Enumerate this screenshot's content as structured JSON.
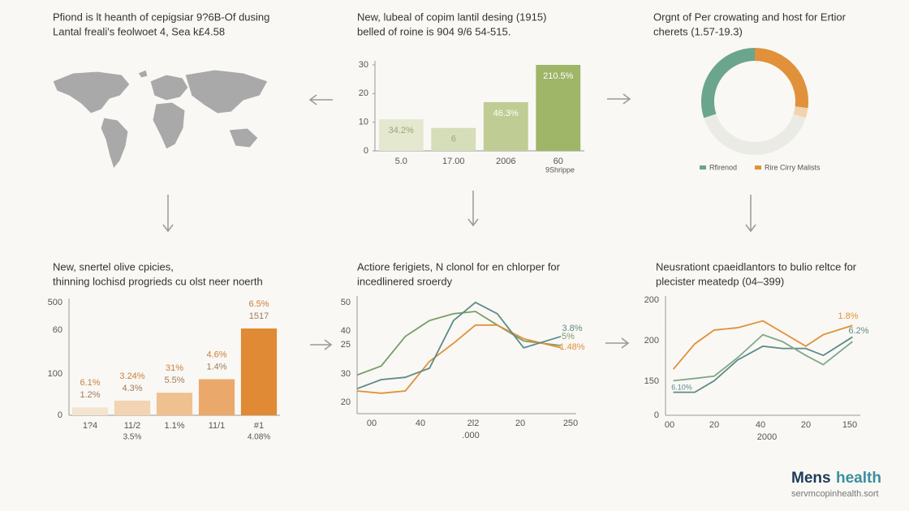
{
  "map": {
    "title": [
      "Pfiond is lt heanth of cepigsiar 9?6B-Of dusing",
      "Lantal freali's feolwoet 4, Sea k£4.58"
    ]
  },
  "chart_data": [
    {
      "type": "bar",
      "title": "New, lubeal of copim lantil desing (1915)",
      "subtitle": "belled of roine is 904 9/6 54-515.",
      "categories": [
        "5.0",
        "17.00",
        "2006",
        "60"
      ],
      "values": [
        11,
        8,
        17,
        30
      ],
      "bar_labels": [
        "34.2%",
        "6",
        "46.3%",
        "210.5%"
      ],
      "colors": [
        "#e3e8cf",
        "#d6ddb9",
        "#bfcc94",
        "#9fb568"
      ],
      "ylim": [
        0,
        30
      ],
      "yticks": [
        0,
        10,
        20,
        30
      ],
      "x_note": "9Shrippe"
    },
    {
      "type": "pie",
      "title": "Orgnt of Per crowating and host for Ertior",
      "subtitle": "cherets (1.57-19.3)",
      "values": [
        27,
        3,
        40,
        30
      ],
      "colors": [
        "#e0913a",
        "#f3d2ae",
        "#ebebe6",
        "#6ba58e"
      ],
      "legend": [
        {
          "name": "Rfirenod",
          "color": "#6ba58e"
        },
        {
          "name": "Rire Cirry Malists",
          "color": "#e0913a"
        }
      ]
    },
    {
      "type": "bar",
      "title": "New, snertel olive cpicies,",
      "subtitle": "thinning lochisd progrieds cu olst neer noerth",
      "categories": [
        "1?4",
        "11/2",
        "1.1%",
        "11/1",
        "#1"
      ],
      "x_sublabels": [
        null,
        "3.5%",
        null,
        null,
        "4.08%"
      ],
      "values": [
        7,
        13,
        20,
        32,
        77
      ],
      "bar_labels": [
        "6.1%",
        "3.24%",
        "31%",
        "4.6%",
        "6.5%"
      ],
      "bar_sublabels": [
        "1.2%",
        "4.3%",
        "5.5%",
        "1.4%",
        "1517"
      ],
      "colors": [
        "#f5e4d0",
        "#f2d4b2",
        "#efc190",
        "#eaa96b",
        "#e08a35"
      ],
      "ylim": [
        0,
        100
      ],
      "y_axis_labels": [
        "500",
        "60",
        "100",
        "0"
      ]
    },
    {
      "type": "line",
      "title": "Actiore ferigiets, N clonol for en chlorper for",
      "subtitle": "incedlinered sroerdy",
      "x": [
        0,
        11,
        22,
        33,
        44,
        54,
        64,
        76,
        93
      ],
      "xlim": [
        0,
        100
      ],
      "ylim": [
        0,
        50
      ],
      "x_axis_labels": [
        "00",
        "40",
        "2l2",
        "20",
        "250"
      ],
      "x_axis_title": ".000",
      "y_axis_labels": [
        "50",
        "40",
        "25",
        "30",
        "20"
      ],
      "series": [
        {
          "name": "5%",
          "color": "#7a9e6a",
          "values": [
            17,
            21,
            34,
            41,
            44,
            45,
            39,
            32,
            30
          ]
        },
        {
          "name": "1.48%",
          "color": "#e0913a",
          "values": [
            10,
            9,
            10,
            23,
            31,
            39,
            39,
            33,
            29
          ]
        },
        {
          "name": "3.8%",
          "color": "#5e8a8a",
          "values": [
            11,
            15,
            16,
            20,
            41,
            49,
            44,
            29,
            34
          ]
        }
      ]
    },
    {
      "type": "line",
      "title": "Neusrationt cpaeidlantors to bulio reltce for",
      "subtitle": "plecister meatedp (04–399)",
      "x": [
        4,
        15,
        25,
        37,
        50,
        60,
        72,
        81,
        96
      ],
      "xlim": [
        0,
        100
      ],
      "ylim": [
        0,
        50
      ],
      "x_axis_labels": [
        "00",
        "20",
        "40",
        "20",
        "150"
      ],
      "x_axis_title": "2000",
      "y_axis_labels": [
        "200",
        "200",
        "150",
        "0"
      ],
      "annotation": "6.10%",
      "series": [
        {
          "name": "1.8%",
          "color": "#e0913a",
          "values": [
            20,
            31,
            37,
            38,
            41,
            36,
            30,
            35,
            39
          ]
        },
        {
          "name": "6.2%",
          "color": "#5e8a8a",
          "values": [
            10,
            10,
            15,
            24,
            30,
            29,
            29,
            26,
            34
          ]
        },
        {
          "name": "",
          "color": "#7fa889",
          "values": [
            15,
            16,
            17,
            25,
            35,
            32,
            26,
            22,
            32
          ]
        }
      ]
    }
  ],
  "brand": {
    "name_a": "Mens",
    "name_b": "health",
    "url": "servmcopinhealth.sort"
  }
}
